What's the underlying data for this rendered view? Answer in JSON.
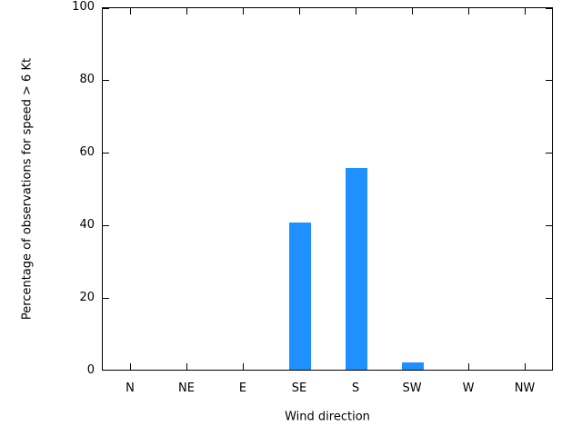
{
  "chart_data": {
    "type": "bar",
    "categories": [
      "N",
      "NE",
      "E",
      "SE",
      "S",
      "SW",
      "W",
      "NW"
    ],
    "values": [
      0,
      0,
      0,
      41,
      56,
      2.5,
      0.5,
      0
    ],
    "title": "",
    "xlabel": "Wind direction",
    "ylabel": "Percentage of observations for speed > 6 Kt",
    "ylim": [
      0,
      100
    ],
    "yticks": [
      0,
      20,
      40,
      60,
      80,
      100
    ],
    "bar_color": "#1e90ff",
    "grid": false,
    "legend": null,
    "axis_color": "#000000",
    "background_color": "#ffffff"
  }
}
